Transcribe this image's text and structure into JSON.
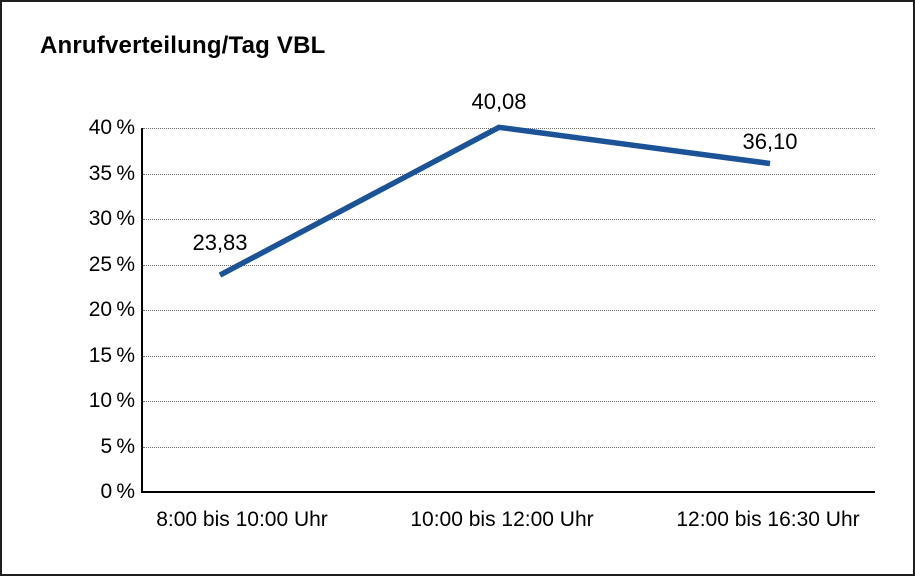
{
  "title": "Anrufverteilung/Tag VBL",
  "chart_data": {
    "type": "line",
    "title": "Anrufverteilung/Tag VBL",
    "categories": [
      "8:00 bis 10:00 Uhr",
      "10:00 bis 12:00 Uhr",
      "12:00 bis 16:30 Uhr"
    ],
    "values": [
      23.83,
      40.08,
      36.1
    ],
    "point_labels": [
      "23,83",
      "40,08",
      "36,10"
    ],
    "xlabel": "",
    "ylabel": "",
    "ylim": [
      0,
      40
    ],
    "ytick_step": 5,
    "ytick_labels": [
      "0 %",
      "5 %",
      "10 %",
      "15 %",
      "20 %",
      "25 %",
      "30 %",
      "35 %",
      "40 %"
    ],
    "grid": "horizontal-dotted",
    "legend": "none",
    "colors": {
      "line": "#1b5298",
      "grid": "#6e6e6e",
      "axis": "#000000",
      "text": "#000000",
      "background": "#ffffff",
      "frame_border": "#1f1f1f"
    }
  }
}
